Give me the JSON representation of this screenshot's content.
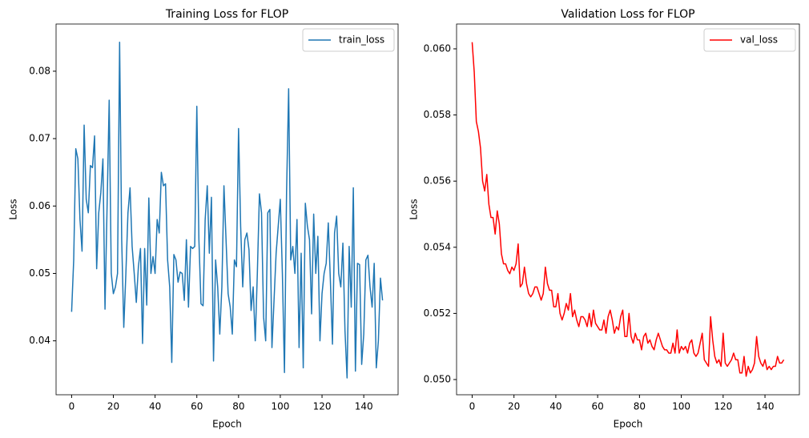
{
  "chart_data": [
    {
      "type": "line",
      "title": "Training Loss for FLOP",
      "x_label": "Epoch",
      "y_label": "Loss",
      "x": [
        0,
        1,
        2,
        3,
        4,
        5,
        6,
        7,
        8,
        9,
        10,
        11,
        12,
        13,
        14,
        15,
        16,
        17,
        18,
        19,
        20,
        21,
        22,
        23,
        24,
        25,
        26,
        27,
        28,
        29,
        30,
        31,
        32,
        33,
        34,
        35,
        36,
        37,
        38,
        39,
        40,
        41,
        42,
        43,
        44,
        45,
        46,
        47,
        48,
        49,
        50,
        51,
        52,
        53,
        54,
        55,
        56,
        57,
        58,
        59,
        60,
        61,
        62,
        63,
        64,
        65,
        66,
        67,
        68,
        69,
        70,
        71,
        72,
        73,
        74,
        75,
        76,
        77,
        78,
        79,
        80,
        81,
        82,
        83,
        84,
        85,
        86,
        87,
        88,
        89,
        90,
        91,
        92,
        93,
        94,
        95,
        96,
        97,
        98,
        99,
        100,
        101,
        102,
        103,
        104,
        105,
        106,
        107,
        108,
        109,
        110,
        111,
        112,
        113,
        114,
        115,
        116,
        117,
        118,
        119,
        120,
        121,
        122,
        123,
        124,
        125,
        126,
        127,
        128,
        129,
        130,
        131,
        132,
        133,
        134,
        135,
        136,
        137,
        138,
        139,
        140,
        141,
        142,
        143,
        144,
        145,
        146,
        147,
        148,
        149
      ],
      "series": [
        {
          "name": "train_loss",
          "color": "#1f77b4",
          "values": [
            0.0443,
            0.052,
            0.0685,
            0.067,
            0.058,
            0.0533,
            0.072,
            0.061,
            0.059,
            0.066,
            0.0657,
            0.0704,
            0.0507,
            0.059,
            0.062,
            0.067,
            0.0447,
            0.06,
            0.0757,
            0.05,
            0.047,
            0.048,
            0.05,
            0.0843,
            0.055,
            0.042,
            0.05,
            0.059,
            0.0627,
            0.054,
            0.05,
            0.0457,
            0.051,
            0.0537,
            0.0396,
            0.0537,
            0.0453,
            0.0612,
            0.05,
            0.0525,
            0.05,
            0.058,
            0.056,
            0.065,
            0.063,
            0.0633,
            0.052,
            0.048,
            0.0368,
            0.0528,
            0.052,
            0.0487,
            0.0502,
            0.05,
            0.046,
            0.055,
            0.045,
            0.054,
            0.0537,
            0.054,
            0.0748,
            0.055,
            0.0455,
            0.0452,
            0.058,
            0.063,
            0.053,
            0.0613,
            0.037,
            0.052,
            0.048,
            0.041,
            0.048,
            0.063,
            0.055,
            0.047,
            0.045,
            0.041,
            0.052,
            0.051,
            0.0715,
            0.057,
            0.048,
            0.055,
            0.056,
            0.0535,
            0.0445,
            0.048,
            0.04,
            0.05,
            0.0618,
            0.059,
            0.0435,
            0.04,
            0.059,
            0.0595,
            0.039,
            0.046,
            0.053,
            0.057,
            0.061,
            0.05,
            0.0353,
            0.062,
            0.0774,
            0.052,
            0.054,
            0.05,
            0.058,
            0.039,
            0.053,
            0.036,
            0.0604,
            0.057,
            0.055,
            0.044,
            0.0588,
            0.05,
            0.0555,
            0.04,
            0.047,
            0.05,
            0.0515,
            0.0575,
            0.049,
            0.0395,
            0.056,
            0.0585,
            0.05,
            0.048,
            0.0545,
            0.0415,
            0.0345,
            0.054,
            0.045,
            0.0627,
            0.0355,
            0.0515,
            0.0513,
            0.0365,
            0.041,
            0.052,
            0.0527,
            0.048,
            0.045,
            0.0515,
            0.036,
            0.04,
            0.0493,
            0.046
          ]
        }
      ],
      "xlim": [
        -7.45,
        156.45
      ],
      "ylim": [
        0.032,
        0.087
      ],
      "xticks": [
        0,
        20,
        40,
        60,
        80,
        100,
        120,
        140
      ],
      "yticks": [
        0.04,
        0.05,
        0.06,
        0.07,
        0.08
      ],
      "legend": "upper right"
    },
    {
      "type": "line",
      "title": "Validation Loss for FLOP",
      "x_label": "Epoch",
      "y_label": "Loss",
      "x": [
        0,
        1,
        2,
        3,
        4,
        5,
        6,
        7,
        8,
        9,
        10,
        11,
        12,
        13,
        14,
        15,
        16,
        17,
        18,
        19,
        20,
        21,
        22,
        23,
        24,
        25,
        26,
        27,
        28,
        29,
        30,
        31,
        32,
        33,
        34,
        35,
        36,
        37,
        38,
        39,
        40,
        41,
        42,
        43,
        44,
        45,
        46,
        47,
        48,
        49,
        50,
        51,
        52,
        53,
        54,
        55,
        56,
        57,
        58,
        59,
        60,
        61,
        62,
        63,
        64,
        65,
        66,
        67,
        68,
        69,
        70,
        71,
        72,
        73,
        74,
        75,
        76,
        77,
        78,
        79,
        80,
        81,
        82,
        83,
        84,
        85,
        86,
        87,
        88,
        89,
        90,
        91,
        92,
        93,
        94,
        95,
        96,
        97,
        98,
        99,
        100,
        101,
        102,
        103,
        104,
        105,
        106,
        107,
        108,
        109,
        110,
        111,
        112,
        113,
        114,
        115,
        116,
        117,
        118,
        119,
        120,
        121,
        122,
        123,
        124,
        125,
        126,
        127,
        128,
        129,
        130,
        131,
        132,
        133,
        134,
        135,
        136,
        137,
        138,
        139,
        140,
        141,
        142,
        143,
        144,
        145,
        146,
        147,
        148,
        149
      ],
      "series": [
        {
          "name": "val_loss",
          "color": "#ff0000",
          "values": [
            0.0602,
            0.0593,
            0.0578,
            0.0575,
            0.057,
            0.056,
            0.0557,
            0.0562,
            0.0553,
            0.0549,
            0.0549,
            0.0544,
            0.0551,
            0.0547,
            0.0538,
            0.0535,
            0.0535,
            0.0533,
            0.0532,
            0.0534,
            0.0533,
            0.0535,
            0.0541,
            0.0528,
            0.0529,
            0.0534,
            0.0529,
            0.0526,
            0.0525,
            0.0526,
            0.0528,
            0.0528,
            0.0526,
            0.0524,
            0.0526,
            0.0534,
            0.0529,
            0.0527,
            0.0527,
            0.0522,
            0.0522,
            0.0526,
            0.052,
            0.0518,
            0.052,
            0.0523,
            0.0521,
            0.0526,
            0.0519,
            0.0521,
            0.0518,
            0.0516,
            0.0519,
            0.0519,
            0.0518,
            0.0516,
            0.052,
            0.0516,
            0.0521,
            0.0517,
            0.0516,
            0.0515,
            0.0515,
            0.0518,
            0.0514,
            0.0519,
            0.0521,
            0.0518,
            0.0514,
            0.0516,
            0.0515,
            0.0519,
            0.0521,
            0.0513,
            0.0513,
            0.052,
            0.0513,
            0.0511,
            0.0514,
            0.0512,
            0.0512,
            0.0509,
            0.0513,
            0.0514,
            0.0511,
            0.0512,
            0.051,
            0.0509,
            0.0512,
            0.0514,
            0.0512,
            0.051,
            0.0509,
            0.0509,
            0.0508,
            0.0508,
            0.0511,
            0.0508,
            0.0515,
            0.0508,
            0.051,
            0.0509,
            0.051,
            0.0508,
            0.0511,
            0.0512,
            0.0508,
            0.0507,
            0.0508,
            0.0511,
            0.0514,
            0.0506,
            0.0505,
            0.0504,
            0.0519,
            0.0512,
            0.0507,
            0.0505,
            0.0506,
            0.0504,
            0.0514,
            0.0505,
            0.0504,
            0.0505,
            0.0506,
            0.0508,
            0.0506,
            0.0506,
            0.0502,
            0.0502,
            0.0507,
            0.0501,
            0.0504,
            0.0502,
            0.0503,
            0.0505,
            0.0513,
            0.0507,
            0.0505,
            0.0504,
            0.0506,
            0.0503,
            0.0504,
            0.0503,
            0.0504,
            0.0504,
            0.0507,
            0.0505,
            0.0505,
            0.0506
          ]
        }
      ],
      "xlim": [
        -7.45,
        156.45
      ],
      "ylim": [
        0.04954,
        0.06075
      ],
      "xticks": [
        0,
        20,
        40,
        60,
        80,
        100,
        120,
        140
      ],
      "yticks": [
        {
          "value": 0.05,
          "label": "0.050"
        },
        0.052,
        0.054,
        0.056,
        0.058,
        {
          "value": 0.06,
          "label": "0.060"
        }
      ],
      "legend": "upper right"
    }
  ]
}
